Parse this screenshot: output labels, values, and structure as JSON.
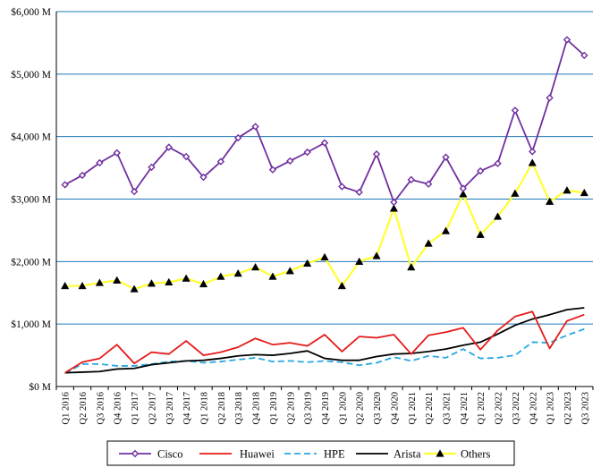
{
  "chart_data": {
    "type": "line",
    "title": "",
    "xlabel": "",
    "ylabel": "",
    "ylim": [
      0,
      6000
    ],
    "y_tick_values": [
      0,
      1000,
      2000,
      3000,
      4000,
      5000,
      6000
    ],
    "y_tick_labels": [
      "$0 M",
      "$1,000 M",
      "$2,000 M",
      "$3,000 M",
      "$4,000 M",
      "$5,000 M",
      "$6,000 M"
    ],
    "grid": "horizontal major gridlines",
    "legend_position": "bottom",
    "x": [
      "Q1 2016",
      "Q2 2016",
      "Q3 2016",
      "Q4 2016",
      "Q1 2017",
      "Q2 2017",
      "Q3 2017",
      "Q4 2017",
      "Q1 2018",
      "Q2 2018",
      "Q3 2018",
      "Q4 2018",
      "Q1 2019",
      "Q2 2019",
      "Q3 2019",
      "Q4 2019",
      "Q1 2020",
      "Q2 2020",
      "Q3 2020",
      "Q4 2020",
      "Q1 2021",
      "Q2 2021",
      "Q3 2021",
      "Q4 2021",
      "Q1 2022",
      "Q2 2022",
      "Q3 2022",
      "Q4 2022",
      "Q1 2023",
      "Q2 2023",
      "Q3 2023"
    ],
    "series": [
      {
        "name": "Cisco",
        "color": "#7030a0",
        "line_style": "solid",
        "marker": "diamond-open",
        "values": [
          3230,
          3380,
          3580,
          3740,
          3120,
          3510,
          3830,
          3680,
          3350,
          3600,
          3980,
          4160,
          3470,
          3610,
          3750,
          3900,
          3200,
          3110,
          3720,
          2950,
          3310,
          3240,
          3670,
          3170,
          3450,
          3570,
          4420,
          3760,
          4620,
          5550,
          5300
        ]
      },
      {
        "name": "Huawei",
        "color": "#e41a1a",
        "line_style": "solid",
        "marker": "none",
        "values": [
          220,
          390,
          450,
          670,
          370,
          550,
          520,
          730,
          500,
          550,
          630,
          770,
          670,
          700,
          650,
          830,
          560,
          800,
          780,
          830,
          520,
          820,
          870,
          940,
          590,
          900,
          1120,
          1200,
          610,
          1050,
          1150
        ]
      },
      {
        "name": "HPE",
        "color": "#29a8e0",
        "line_style": "dashed",
        "marker": "none",
        "values": [
          210,
          360,
          360,
          330,
          330,
          360,
          400,
          410,
          380,
          400,
          430,
          460,
          400,
          410,
          390,
          410,
          390,
          340,
          380,
          470,
          410,
          490,
          460,
          600,
          450,
          460,
          500,
          710,
          700,
          820,
          920
        ]
      },
      {
        "name": "Arista",
        "color": "#000000",
        "line_style": "solid",
        "marker": "none",
        "values": [
          220,
          230,
          240,
          280,
          290,
          350,
          380,
          410,
          420,
          450,
          490,
          510,
          500,
          530,
          570,
          450,
          420,
          420,
          480,
          520,
          530,
          560,
          600,
          660,
          710,
          840,
          980,
          1080,
          1150,
          1230,
          1260
        ]
      },
      {
        "name": "Others",
        "color": "#ffff33",
        "line_style": "solid",
        "marker": "triangle-filled",
        "values": [
          1610,
          1610,
          1660,
          1700,
          1560,
          1650,
          1670,
          1730,
          1640,
          1760,
          1810,
          1910,
          1760,
          1850,
          1970,
          2070,
          1610,
          2000,
          2090,
          2850,
          1910,
          2290,
          2490,
          3080,
          2430,
          2720,
          3090,
          3580,
          2960,
          3140,
          3100
        ]
      }
    ]
  }
}
